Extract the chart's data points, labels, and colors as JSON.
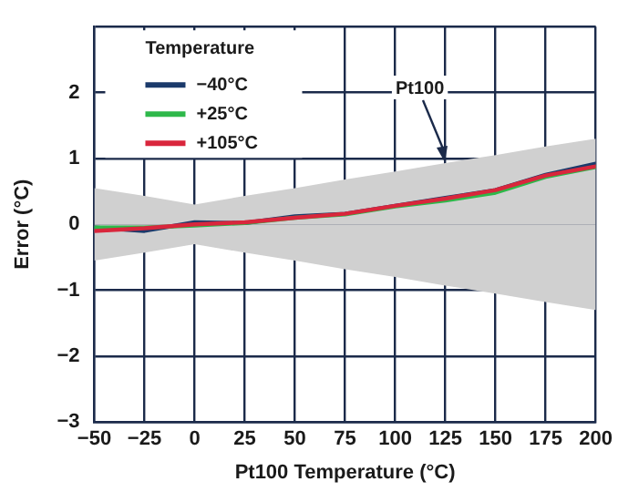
{
  "chart_data": {
    "type": "line",
    "x": [
      -50,
      -25,
      0,
      25,
      50,
      75,
      100,
      125,
      150,
      175,
      200
    ],
    "series": [
      {
        "type": "area",
        "color": "#d0d0d0",
        "values": [
          0.55,
          0.43,
          0.3,
          0.43,
          0.55,
          0.68,
          0.8,
          0.93,
          1.05,
          1.18,
          1.3
        ]
      },
      {
        "type": "area",
        "color": "#d0d0d0",
        "values": [
          -0.55,
          -0.43,
          -0.3,
          -0.43,
          -0.55,
          -0.68,
          -0.8,
          -0.93,
          -1.05,
          -1.18,
          -1.3
        ]
      },
      {
        "name": "−40°C",
        "color": "#1b3a6b",
        "values": [
          -0.05,
          -0.1,
          0.03,
          0.02,
          0.12,
          0.16,
          0.28,
          0.4,
          0.52,
          0.75,
          0.92
        ]
      },
      {
        "name": "+25°C",
        "color": "#2eb84a",
        "values": [
          -0.05,
          -0.05,
          -0.02,
          0.02,
          0.1,
          0.15,
          0.27,
          0.36,
          0.48,
          0.72,
          0.87
        ]
      },
      {
        "name": "+105°C",
        "color": "#d9263c",
        "values": [
          -0.1,
          -0.06,
          0,
          0.03,
          0.1,
          0.16,
          0.28,
          0.39,
          0.52,
          0.74,
          0.88
        ]
      }
    ],
    "xlabel": "Pt100 Temperature (°C)",
    "ylabel": "Error (°C)",
    "legend_title": "Temperature",
    "annotations": [
      {
        "text": "Pt100",
        "x": 125,
        "y": 0.93
      }
    ],
    "xlim": [
      -50,
      200
    ],
    "xticks": [
      -50,
      -25,
      0,
      25,
      50,
      75,
      100,
      125,
      150,
      175,
      200
    ],
    "ylim": [
      -3,
      3
    ],
    "yticks": [
      -3,
      -2,
      -1,
      0,
      1,
      2,
      {
        "value": 3,
        "label": null
      }
    ],
    "grid": true,
    "legend": "top left",
    "marker": "none",
    "line_style": "solid"
  }
}
